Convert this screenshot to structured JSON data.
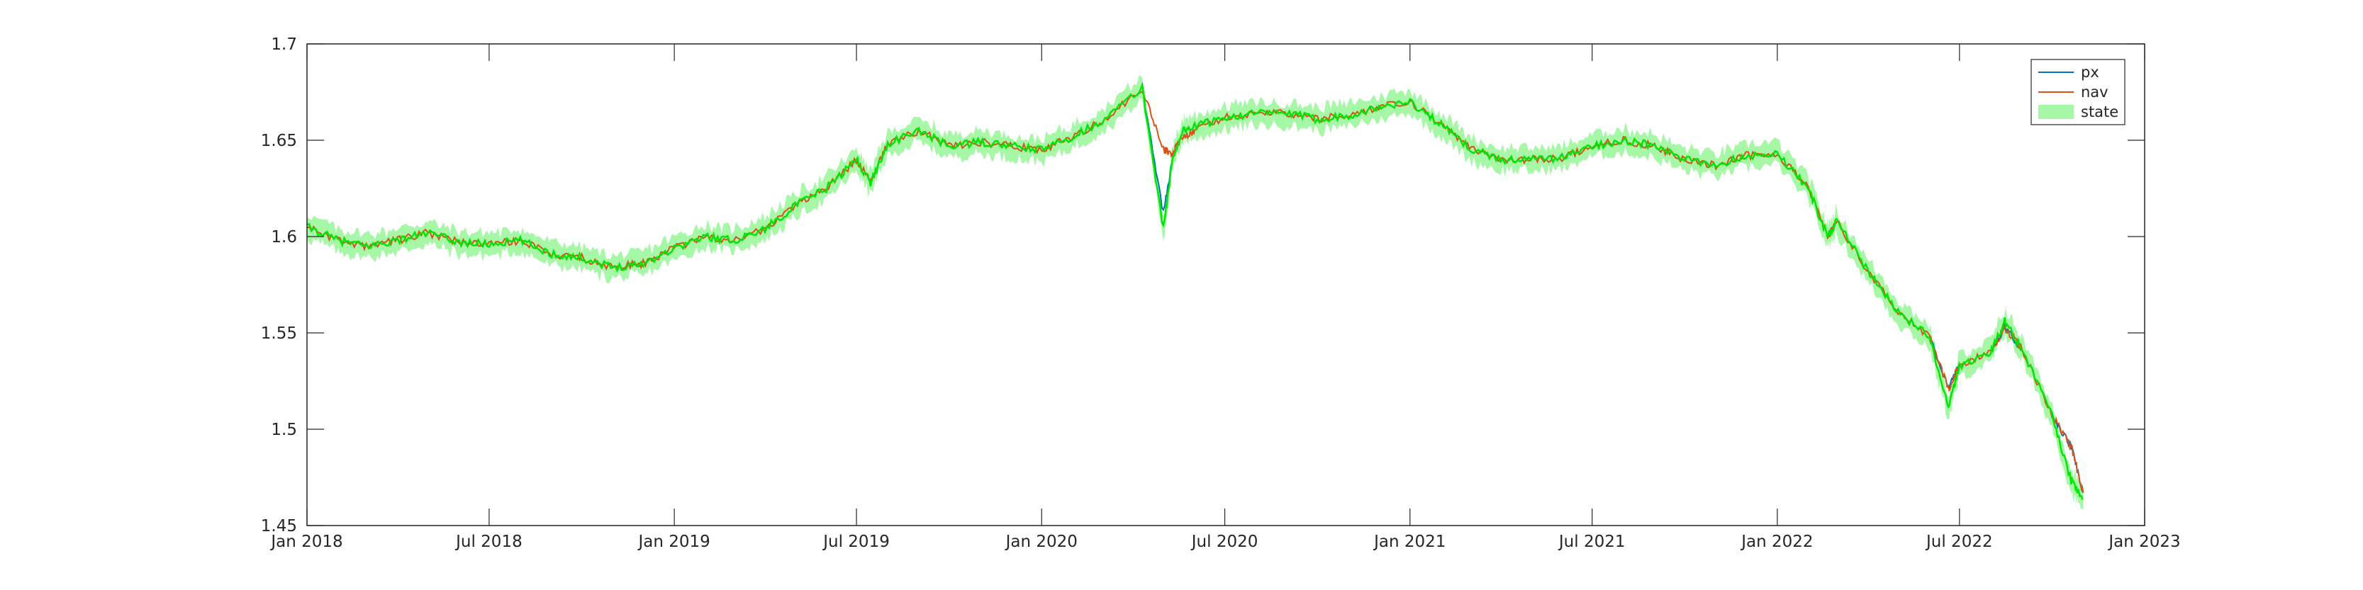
{
  "chart_data": {
    "type": "line",
    "title": "",
    "xlabel": "",
    "ylabel": "",
    "xlim": [
      "2018-01-01",
      "2023-01-01"
    ],
    "ylim": [
      1.45,
      1.7
    ],
    "x_ticks": [
      "Jan 2018",
      "Jul 2018",
      "Jan 2019",
      "Jul 2019",
      "Jan 2020",
      "Jul 2020",
      "Jan 2021",
      "Jul 2021",
      "Jan 2022",
      "Jul 2022",
      "Jan 2023"
    ],
    "x_tick_dates": [
      "2018-01-01",
      "2018-07-01",
      "2019-01-01",
      "2019-07-01",
      "2020-01-01",
      "2020-07-01",
      "2021-01-01",
      "2021-07-01",
      "2022-01-01",
      "2022-07-01",
      "2023-01-01"
    ],
    "y_ticks": [
      1.45,
      1.5,
      1.55,
      1.6,
      1.65,
      1.7
    ],
    "y_tick_labels": [
      "1.45",
      "1.5",
      "1.55",
      "1.6",
      "1.65",
      "1.7"
    ],
    "grid": false,
    "legend_position": "top-right",
    "series": [
      {
        "name": "px",
        "kind": "line",
        "color": "#0072BD",
        "x": [
          "2018-01-01",
          "2018-02-01",
          "2018-03-01",
          "2018-04-01",
          "2018-05-01",
          "2018-06-01",
          "2018-07-01",
          "2018-08-01",
          "2018-09-01",
          "2018-10-01",
          "2018-11-01",
          "2018-12-01",
          "2019-01-01",
          "2019-02-01",
          "2019-03-01",
          "2019-04-01",
          "2019-05-01",
          "2019-06-01",
          "2019-07-01",
          "2019-07-15",
          "2019-08-01",
          "2019-09-01",
          "2019-10-01",
          "2019-11-01",
          "2019-12-01",
          "2020-01-01",
          "2020-02-01",
          "2020-03-01",
          "2020-04-10",
          "2020-05-01",
          "2020-05-10",
          "2020-05-20",
          "2020-06-01",
          "2020-07-01",
          "2020-08-01",
          "2020-09-01",
          "2020-10-01",
          "2020-11-01",
          "2020-12-01",
          "2021-01-01",
          "2021-02-01",
          "2021-03-01",
          "2021-04-01",
          "2021-05-01",
          "2021-06-01",
          "2021-07-01",
          "2021-08-01",
          "2021-09-01",
          "2021-10-01",
          "2021-11-01",
          "2021-12-01",
          "2022-01-01",
          "2022-02-01",
          "2022-02-20",
          "2022-03-01",
          "2022-04-01",
          "2022-05-01",
          "2022-06-01",
          "2022-06-20",
          "2022-07-01",
          "2022-08-01",
          "2022-08-15",
          "2022-09-01",
          "2022-10-01",
          "2022-10-20",
          "2022-11-01"
        ],
        "y": [
          1.605,
          1.598,
          1.595,
          1.598,
          1.602,
          1.597,
          1.596,
          1.598,
          1.591,
          1.589,
          1.584,
          1.586,
          1.594,
          1.6,
          1.598,
          1.604,
          1.616,
          1.625,
          1.64,
          1.628,
          1.648,
          1.655,
          1.647,
          1.649,
          1.647,
          1.645,
          1.652,
          1.66,
          1.677,
          1.612,
          1.64,
          1.655,
          1.657,
          1.662,
          1.664,
          1.664,
          1.661,
          1.663,
          1.667,
          1.67,
          1.658,
          1.646,
          1.64,
          1.64,
          1.641,
          1.647,
          1.65,
          1.647,
          1.64,
          1.637,
          1.642,
          1.643,
          1.625,
          1.6,
          1.608,
          1.582,
          1.561,
          1.548,
          1.521,
          1.533,
          1.54,
          1.553,
          1.542,
          1.507,
          1.491,
          1.467
        ]
      },
      {
        "name": "nav",
        "kind": "line",
        "color": "#D95319",
        "x": [
          "2018-01-01",
          "2018-02-01",
          "2018-03-01",
          "2018-04-01",
          "2018-05-01",
          "2018-06-01",
          "2018-07-01",
          "2018-08-01",
          "2018-09-01",
          "2018-10-01",
          "2018-11-01",
          "2018-12-01",
          "2019-01-01",
          "2019-02-01",
          "2019-03-01",
          "2019-04-01",
          "2019-05-01",
          "2019-06-01",
          "2019-07-01",
          "2019-07-15",
          "2019-08-01",
          "2019-09-01",
          "2019-10-01",
          "2019-11-01",
          "2019-12-01",
          "2020-01-01",
          "2020-02-01",
          "2020-03-01",
          "2020-04-10",
          "2020-05-01",
          "2020-05-10",
          "2020-05-20",
          "2020-06-01",
          "2020-07-01",
          "2020-08-01",
          "2020-09-01",
          "2020-10-01",
          "2020-11-01",
          "2020-12-01",
          "2021-01-01",
          "2021-02-01",
          "2021-03-01",
          "2021-04-01",
          "2021-05-01",
          "2021-06-01",
          "2021-07-01",
          "2021-08-01",
          "2021-09-01",
          "2021-10-01",
          "2021-11-01",
          "2021-12-01",
          "2022-01-01",
          "2022-02-01",
          "2022-02-20",
          "2022-03-01",
          "2022-04-01",
          "2022-05-01",
          "2022-06-01",
          "2022-06-20",
          "2022-07-01",
          "2022-08-01",
          "2022-08-15",
          "2022-09-01",
          "2022-10-01",
          "2022-10-20",
          "2022-11-01"
        ],
        "y": [
          1.605,
          1.598,
          1.595,
          1.598,
          1.602,
          1.597,
          1.596,
          1.598,
          1.591,
          1.589,
          1.584,
          1.586,
          1.594,
          1.6,
          1.598,
          1.604,
          1.616,
          1.625,
          1.64,
          1.628,
          1.648,
          1.655,
          1.647,
          1.649,
          1.647,
          1.645,
          1.652,
          1.66,
          1.677,
          1.645,
          1.643,
          1.652,
          1.655,
          1.662,
          1.664,
          1.664,
          1.661,
          1.663,
          1.667,
          1.67,
          1.658,
          1.646,
          1.64,
          1.64,
          1.641,
          1.647,
          1.65,
          1.647,
          1.64,
          1.637,
          1.642,
          1.643,
          1.625,
          1.6,
          1.608,
          1.582,
          1.561,
          1.548,
          1.521,
          1.533,
          1.54,
          1.553,
          1.542,
          1.507,
          1.491,
          1.467
        ]
      },
      {
        "name": "state",
        "kind": "band",
        "color": "#00E600",
        "fill_color": "#A6F7A6",
        "x": [
          "2018-01-01",
          "2018-02-01",
          "2018-03-01",
          "2018-04-01",
          "2018-05-01",
          "2018-06-01",
          "2018-07-01",
          "2018-08-01",
          "2018-09-01",
          "2018-10-01",
          "2018-11-01",
          "2018-12-01",
          "2019-01-01",
          "2019-02-01",
          "2019-03-01",
          "2019-04-01",
          "2019-05-01",
          "2019-06-01",
          "2019-07-01",
          "2019-07-15",
          "2019-08-01",
          "2019-09-01",
          "2019-10-01",
          "2019-11-01",
          "2019-12-01",
          "2020-01-01",
          "2020-02-01",
          "2020-03-01",
          "2020-04-10",
          "2020-05-01",
          "2020-05-10",
          "2020-05-20",
          "2020-06-01",
          "2020-07-01",
          "2020-08-01",
          "2020-09-01",
          "2020-10-01",
          "2020-11-01",
          "2020-12-01",
          "2021-01-01",
          "2021-02-01",
          "2021-03-01",
          "2021-04-01",
          "2021-05-01",
          "2021-06-01",
          "2021-07-01",
          "2021-08-01",
          "2021-09-01",
          "2021-10-01",
          "2021-11-01",
          "2021-12-01",
          "2022-01-01",
          "2022-02-01",
          "2022-02-20",
          "2022-03-01",
          "2022-04-01",
          "2022-05-01",
          "2022-06-01",
          "2022-06-20",
          "2022-07-01",
          "2022-08-01",
          "2022-08-15",
          "2022-09-01",
          "2022-10-01",
          "2022-10-20",
          "2022-11-01"
        ],
        "y": [
          1.605,
          1.598,
          1.595,
          1.598,
          1.602,
          1.597,
          1.596,
          1.598,
          1.591,
          1.589,
          1.584,
          1.586,
          1.594,
          1.6,
          1.598,
          1.604,
          1.616,
          1.625,
          1.64,
          1.628,
          1.648,
          1.655,
          1.647,
          1.649,
          1.647,
          1.645,
          1.652,
          1.66,
          1.677,
          1.604,
          1.64,
          1.655,
          1.657,
          1.662,
          1.664,
          1.664,
          1.661,
          1.663,
          1.667,
          1.67,
          1.658,
          1.646,
          1.64,
          1.64,
          1.641,
          1.647,
          1.65,
          1.647,
          1.64,
          1.637,
          1.642,
          1.643,
          1.625,
          1.6,
          1.608,
          1.582,
          1.561,
          1.548,
          1.511,
          1.533,
          1.54,
          1.556,
          1.542,
          1.507,
          1.473,
          1.464
        ],
        "band_halfwidth": 0.005
      }
    ]
  }
}
